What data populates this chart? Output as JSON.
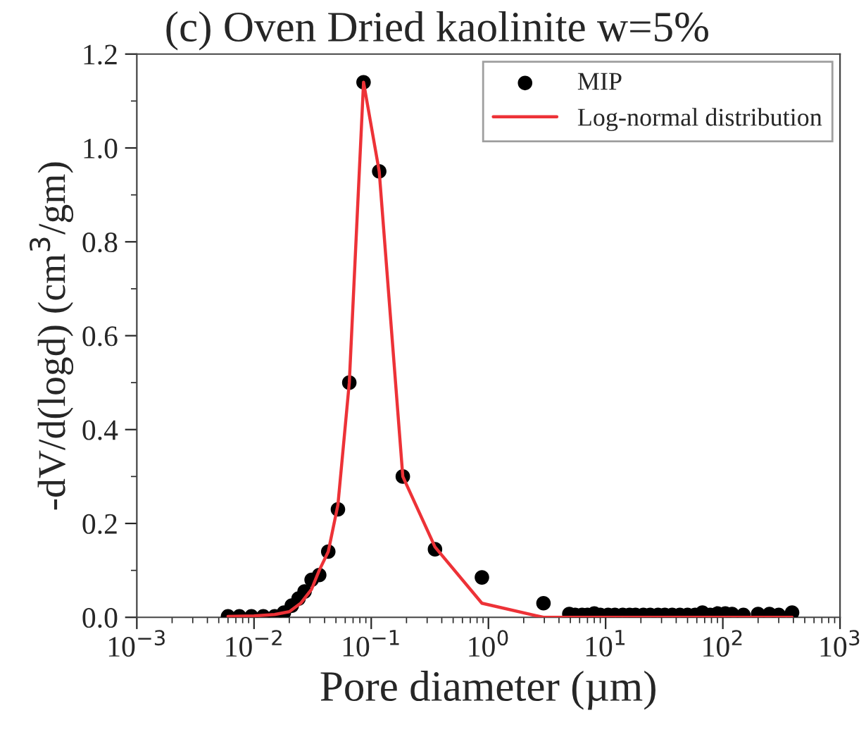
{
  "chart_data": {
    "type": "scatter",
    "title": "(c) Oven Dried kaolinite w=5%",
    "xlabel": "Pore diameter (µm)",
    "ylabel": "-dV/d(logd) (cm$^{3}$/gm)",
    "log": "x",
    "xlim": [
      0.001,
      1000
    ],
    "ylim": [
      0,
      1.2
    ],
    "xticks": [
      {
        "value": 0.001,
        "label": "10$^{−3}$"
      },
      {
        "value": 0.01,
        "label": "10$^{−2}$"
      },
      {
        "value": 0.1,
        "label": "10$^{−1}$"
      },
      {
        "value": 1,
        "label": "10$^{0}$"
      },
      {
        "value": 10,
        "label": "10$^{1}$"
      },
      {
        "value": 100,
        "label": "10$^{2}$"
      },
      {
        "value": 1000,
        "label": "10$^{3}$"
      }
    ],
    "yticks": [
      {
        "value": 0,
        "label": "0.0"
      },
      0.2,
      0.4,
      0.6,
      0.8,
      {
        "value": 1.0,
        "label": "1.0"
      },
      1.2
    ],
    "grid": false,
    "legend": "top right",
    "series": [
      {
        "name": "MIP",
        "color": "#000000",
        "marker": "circle",
        "x": [
          0.006,
          0.0075,
          0.0095,
          0.012,
          0.015,
          0.018,
          0.021,
          0.024,
          0.027,
          0.031,
          0.036,
          0.043,
          0.052,
          0.065,
          0.086,
          0.117,
          0.186,
          0.35,
          0.88,
          2.95,
          4.9,
          5.5,
          6.3,
          7,
          8,
          9,
          10.5,
          12,
          14,
          16,
          18,
          21,
          24,
          28,
          32,
          37,
          43,
          50,
          58,
          67,
          78,
          90,
          105,
          120,
          150,
          200,
          250,
          300,
          390
        ],
        "values": [
          0.002,
          0.002,
          0.002,
          0.002,
          0.002,
          0.01,
          0.025,
          0.04,
          0.055,
          0.08,
          0.09,
          0.14,
          0.23,
          0.5,
          1.14,
          0.95,
          0.3,
          0.145,
          0.085,
          0.03,
          0.007,
          0.005,
          0.005,
          0.005,
          0.008,
          0.005,
          0.005,
          0.005,
          0.005,
          0.005,
          0.005,
          0.005,
          0.005,
          0.005,
          0.005,
          0.005,
          0.005,
          0.005,
          0.005,
          0.01,
          0.005,
          0.008,
          0.008,
          0.007,
          0.005,
          0.007,
          0.007,
          0.005,
          0.01
        ]
      },
      {
        "name": "Log-normal distribution",
        "type": "line",
        "color": "#ed3237",
        "marker": "none",
        "line_style": "solid",
        "x": [
          0.006,
          0.01,
          0.015,
          0.02,
          0.025,
          0.031,
          0.036,
          0.043,
          0.052,
          0.065,
          0.086,
          0.117,
          0.186,
          0.35,
          0.88,
          2.95,
          10,
          100,
          390
        ],
        "values": [
          0.002,
          0.003,
          0.006,
          0.012,
          0.03,
          0.06,
          0.1,
          0.14,
          0.24,
          0.5,
          1.14,
          0.95,
          0.3,
          0.15,
          0.03,
          0.0,
          0.0,
          0.0,
          0.0
        ]
      }
    ]
  }
}
